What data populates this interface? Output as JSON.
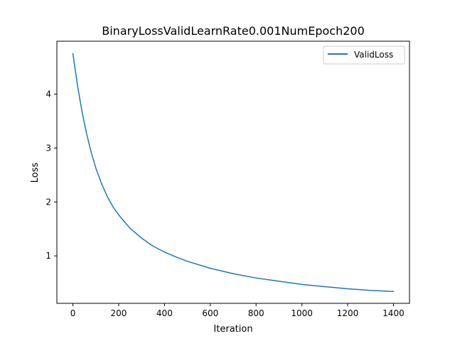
{
  "chart_data": {
    "type": "line",
    "title": "BinaryLossValidLearnRate0.001NumEpoch200",
    "xlabel": "Iteration",
    "ylabel": "Loss",
    "xlim": [
      -70,
      1470
    ],
    "ylim": [
      0.12,
      4.98
    ],
    "xticks": [
      0,
      200,
      400,
      600,
      800,
      1000,
      1200,
      1400
    ],
    "yticks": [
      1,
      2,
      3,
      4
    ],
    "grid": false,
    "legend": {
      "position": "top-right",
      "entries": [
        "ValidLoss"
      ]
    },
    "series": [
      {
        "name": "ValidLoss",
        "color": "#1f77b4",
        "x": [
          0,
          20,
          40,
          60,
          80,
          100,
          125,
          150,
          175,
          200,
          250,
          300,
          350,
          400,
          450,
          500,
          600,
          700,
          800,
          900,
          1000,
          1100,
          1200,
          1300,
          1400
        ],
        "y": [
          4.75,
          4.16,
          3.67,
          3.26,
          2.92,
          2.63,
          2.34,
          2.1,
          1.91,
          1.76,
          1.51,
          1.33,
          1.18,
          1.07,
          0.98,
          0.9,
          0.77,
          0.67,
          0.59,
          0.53,
          0.47,
          0.43,
          0.39,
          0.36,
          0.34
        ]
      }
    ]
  }
}
